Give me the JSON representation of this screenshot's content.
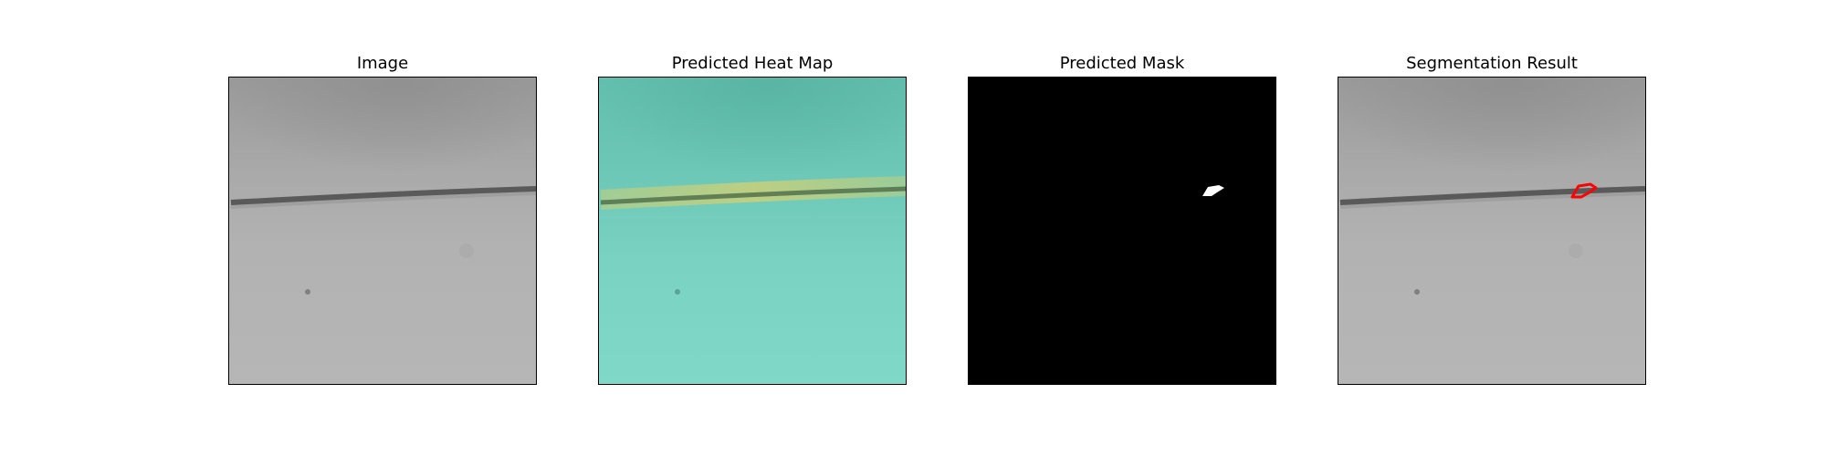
{
  "panels": [
    {
      "title": "Image"
    },
    {
      "title": "Predicted Heat Map"
    },
    {
      "title": "Predicted Mask"
    },
    {
      "title": "Segmentation Result"
    }
  ],
  "colors": {
    "background": "#ffffff",
    "frame_border": "#000000",
    "mask_background": "#000000",
    "mask_foreground": "#ffffff",
    "contour": "#ff0000",
    "heatmap_low": "#7fd8c8",
    "heatmap_high": "#d8d070"
  }
}
